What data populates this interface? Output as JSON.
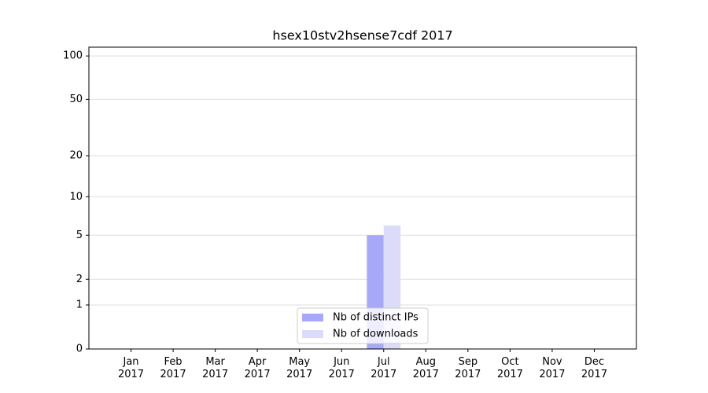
{
  "chart_data": {
    "type": "bar",
    "title": "hsex10stv2hsense7cdf 2017",
    "categories": [
      "Jan\n2017",
      "Feb\n2017",
      "Mar\n2017",
      "Apr\n2017",
      "May\n2017",
      "Jun\n2017",
      "Jul\n2017",
      "Aug\n2017",
      "Sep\n2017",
      "Oct\n2017",
      "Nov\n2017",
      "Dec\n2017"
    ],
    "series": [
      {
        "name": "Nb of distinct IPs",
        "color": "#a8a8f8",
        "values": [
          0,
          0,
          0,
          0,
          0,
          0,
          5,
          0,
          0,
          0,
          0,
          0
        ]
      },
      {
        "name": "Nb of downloads",
        "color": "#dcdcfa",
        "values": [
          0,
          0,
          0,
          0,
          0,
          0,
          6,
          0,
          0,
          0,
          0,
          0
        ]
      }
    ],
    "yscale": "log1p",
    "ylim": [
      0,
      115
    ],
    "yticks": [
      0,
      1,
      2,
      5,
      10,
      20,
      50,
      100
    ],
    "grid": true,
    "legend": "lower center"
  }
}
